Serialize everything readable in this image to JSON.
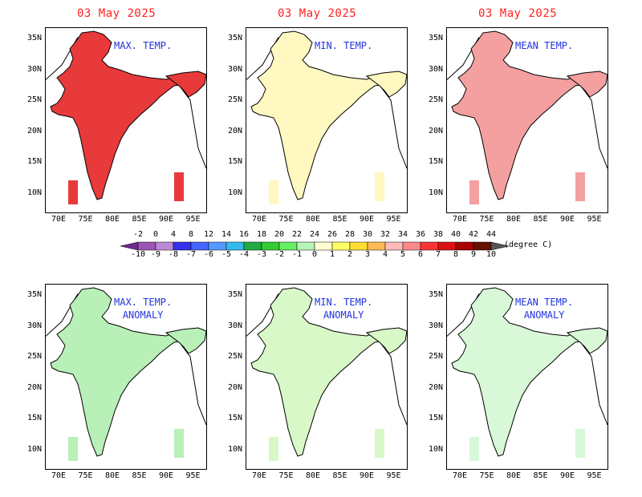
{
  "panels": [
    {
      "date": "03 May 2025",
      "label": [
        "MAX. TEMP.",
        ""
      ],
      "fill": "max"
    },
    {
      "date": "03 May 2025",
      "label": [
        "MIN. TEMP.",
        ""
      ],
      "fill": "min"
    },
    {
      "date": "03 May 2025",
      "label": [
        "MEAN TEMP.",
        ""
      ],
      "fill": "mean"
    },
    {
      "date": "",
      "label": [
        "MAX. TEMP.",
        "ANOMALY"
      ],
      "fill": "amax"
    },
    {
      "date": "",
      "label": [
        "MIN. TEMP.",
        "ANOMALY"
      ],
      "fill": "amin"
    },
    {
      "date": "",
      "label": [
        "MEAN TEMP.",
        "ANOMALY"
      ],
      "fill": "amean"
    }
  ],
  "lat_ticks": [
    "35N",
    "30N",
    "25N",
    "20N",
    "15N",
    "10N"
  ],
  "lon_ticks": [
    "70E",
    "75E",
    "80E",
    "85E",
    "90E",
    "95E"
  ],
  "colorbar": {
    "temp_labels": [
      "-2",
      "0",
      "4",
      "8",
      "12",
      "14",
      "16",
      "18",
      "20",
      "22",
      "24",
      "26",
      "28",
      "30",
      "32",
      "34",
      "36",
      "38",
      "40",
      "42",
      "44"
    ],
    "anomaly_labels": [
      "-10",
      "-9",
      "-8",
      "-7",
      "-6",
      "-5",
      "-4",
      "-3",
      "-2",
      "-1",
      "0",
      "1",
      "2",
      "3",
      "4",
      "5",
      "6",
      "7",
      "8",
      "9",
      "10"
    ],
    "unit": "(degree C)",
    "colors": [
      "#6e2a8c",
      "#9b55b4",
      "#b98ad6",
      "#3333ee",
      "#4466ff",
      "#5599ff",
      "#33bbee",
      "#22aa44",
      "#33cc33",
      "#66ee66",
      "#b6f5b6",
      "#ffffd0",
      "#ffff66",
      "#ffdd33",
      "#ffbb55",
      "#ffbbbb",
      "#ff8888",
      "#ff3333",
      "#dd1111",
      "#aa0000",
      "#661100",
      "#555555"
    ]
  },
  "fill_colors": {
    "max": "#e83a3a",
    "min": "#fff8c0",
    "mean": "#f4a0a0",
    "amax": "#b8f0b8",
    "amin": "#d8f8c8",
    "amean": "#d8f8d8"
  }
}
